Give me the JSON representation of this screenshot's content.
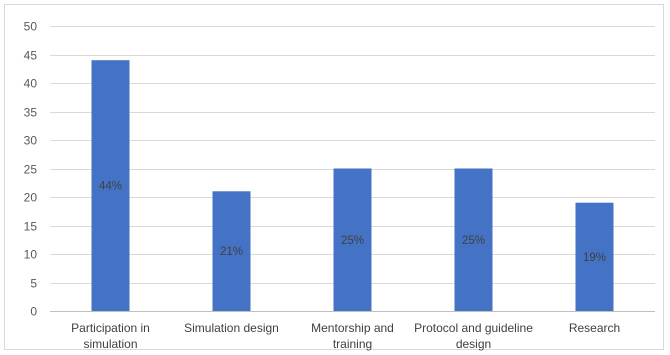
{
  "chart_data": {
    "type": "bar",
    "title": "",
    "xlabel": "",
    "ylabel": "",
    "categories": [
      [
        "Participation in",
        "simulation"
      ],
      [
        "Simulation design"
      ],
      [
        "Mentorship and",
        "training"
      ],
      [
        "Protocol and guideline",
        "design"
      ],
      [
        "Research"
      ]
    ],
    "values": [
      44,
      21,
      25,
      25,
      19
    ],
    "data_labels": [
      "44%",
      "21%",
      "25%",
      "25%",
      "19%"
    ],
    "ylim": [
      0,
      50
    ],
    "yticks": [
      0,
      5,
      10,
      15,
      20,
      25,
      30,
      35,
      40,
      45,
      50
    ],
    "grid": true,
    "legend": "none",
    "colors": {
      "bar": "#4472c4"
    }
  }
}
